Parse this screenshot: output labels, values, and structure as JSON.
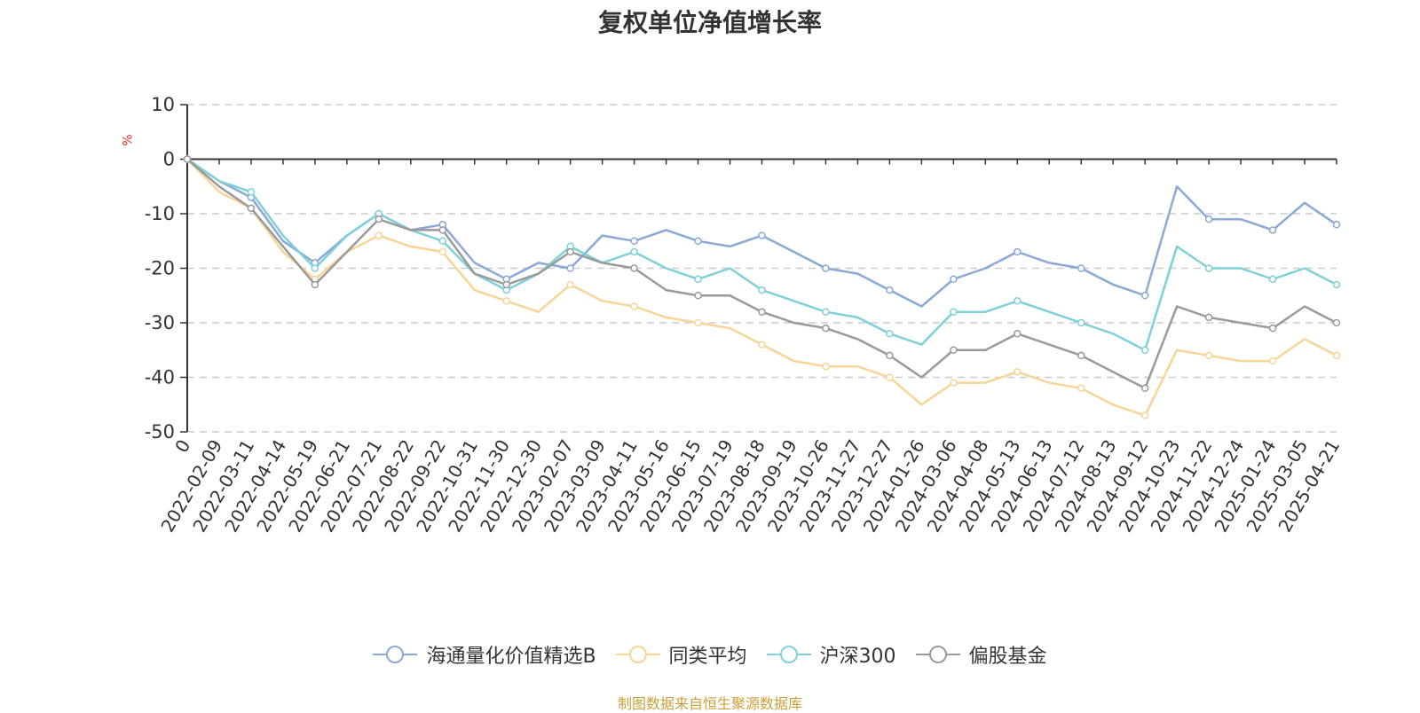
{
  "chart_data": {
    "type": "line",
    "title": "复权单位净值增长率",
    "ylabel": "%",
    "ylim": [
      -50,
      10
    ],
    "yticks": [
      10,
      0,
      -10,
      -20,
      -30,
      -40,
      -50
    ],
    "grid": true,
    "legend_position": "bottom",
    "x_labels": [
      "0",
      "2022-02-09",
      "2022-03-11",
      "2022-04-14",
      "2022-05-19",
      "2022-06-21",
      "2022-07-21",
      "2022-08-22",
      "2022-09-22",
      "2022-10-31",
      "2022-11-30",
      "2022-12-30",
      "2023-02-07",
      "2023-03-09",
      "2023-04-11",
      "2023-05-16",
      "2023-06-15",
      "2023-07-19",
      "2023-08-18",
      "2023-09-19",
      "2023-10-26",
      "2023-11-27",
      "2023-12-27",
      "2024-01-26",
      "2024-03-06",
      "2024-04-08",
      "2024-05-13",
      "2024-06-13",
      "2024-07-12",
      "2024-08-13",
      "2024-09-12",
      "2024-10-23",
      "2024-11-22",
      "2024-12-24",
      "2025-01-24",
      "2025-03-05",
      "2025-04-21"
    ],
    "series": [
      {
        "name": "海通量化价值精选B",
        "color": "#8aa8d8",
        "values": [
          0,
          -4,
          -7,
          -15,
          -19,
          -14,
          -10,
          -13,
          -12,
          -19,
          -22,
          -19,
          -20,
          -14,
          -15,
          -13,
          -15,
          -16,
          -14,
          -17,
          -20,
          -21,
          -24,
          -27,
          -22,
          -20,
          -17,
          -19,
          -20,
          -23,
          -25,
          -5,
          -11,
          -11,
          -13,
          -8,
          -12
        ]
      },
      {
        "name": "同类平均",
        "color": "#f8d497",
        "values": [
          0,
          -6,
          -9,
          -17,
          -22,
          -17,
          -14,
          -16,
          -17,
          -24,
          -26,
          -28,
          -23,
          -26,
          -27,
          -29,
          -30,
          -31,
          -34,
          -37,
          -38,
          -38,
          -40,
          -45,
          -41,
          -41,
          -39,
          -41,
          -42,
          -45,
          -47,
          -35,
          -36,
          -37,
          -37,
          -33,
          -36
        ]
      },
      {
        "name": "沪深300",
        "color": "#7fd0d8",
        "values": [
          0,
          -4,
          -6,
          -14,
          -20,
          -14,
          -10,
          -13,
          -15,
          -21,
          -24,
          -21,
          -16,
          -19,
          -17,
          -20,
          -22,
          -20,
          -24,
          -26,
          -28,
          -29,
          -32,
          -34,
          -28,
          -28,
          -26,
          -28,
          -30,
          -32,
          -35,
          -16,
          -20,
          -20,
          -22,
          -20,
          -23
        ]
      },
      {
        "name": "偏股基金",
        "color": "#9a9a9a",
        "values": [
          0,
          -5,
          -9,
          -16,
          -23,
          -17,
          -11,
          -13,
          -13,
          -21,
          -23,
          -21,
          -17,
          -19,
          -20,
          -24,
          -25,
          -25,
          -28,
          -30,
          -31,
          -33,
          -36,
          -40,
          -35,
          -35,
          -32,
          -34,
          -36,
          -39,
          -42,
          -27,
          -29,
          -30,
          -31,
          -27,
          -30
        ]
      }
    ]
  },
  "footer": {
    "source": "制图数据来自恒生聚源数据库"
  }
}
